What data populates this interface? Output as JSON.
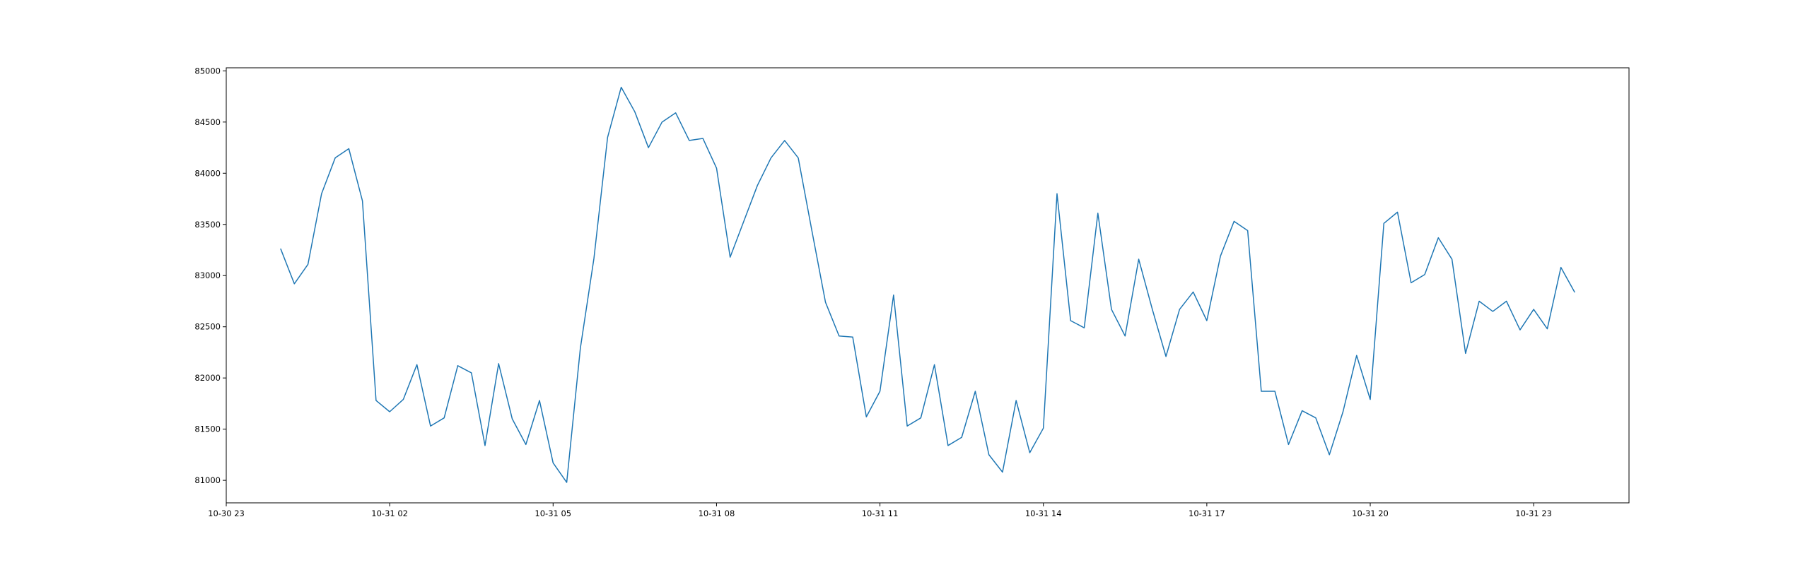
{
  "chart_data": {
    "type": "line",
    "title": "",
    "xlabel": "",
    "ylabel": "",
    "grid": false,
    "line_color": "#1f77b4",
    "xlim": [
      "10-30 23:00",
      "11-01 00:45"
    ],
    "ylim": [
      80780,
      85030
    ],
    "x_ticks": [
      "10-30 23",
      "10-31 02",
      "10-31 05",
      "10-31 08",
      "10-31 11",
      "10-31 14",
      "10-31 17",
      "10-31 20",
      "10-31 23"
    ],
    "y_ticks": [
      81000,
      81500,
      82000,
      82500,
      83000,
      83500,
      84000,
      84500,
      85000
    ],
    "series": [
      {
        "x": [
          "10-31 00:00",
          "10-31 00:15",
          "10-31 00:30",
          "10-31 00:45",
          "10-31 01:00",
          "10-31 01:15",
          "10-31 01:30",
          "10-31 01:45",
          "10-31 02:00",
          "10-31 02:15",
          "10-31 02:30",
          "10-31 02:45",
          "10-31 03:00",
          "10-31 03:15",
          "10-31 03:30",
          "10-31 03:45",
          "10-31 04:00",
          "10-31 04:15",
          "10-31 04:30",
          "10-31 04:45",
          "10-31 05:00",
          "10-31 05:15",
          "10-31 05:30",
          "10-31 05:45",
          "10-31 06:00",
          "10-31 06:15",
          "10-31 06:30",
          "10-31 06:45",
          "10-31 07:00",
          "10-31 07:15",
          "10-31 07:30",
          "10-31 07:45",
          "10-31 08:00",
          "10-31 08:15",
          "10-31 08:30",
          "10-31 08:45",
          "10-31 09:00",
          "10-31 09:15",
          "10-31 09:30",
          "10-31 09:45",
          "10-31 10:00",
          "10-31 10:15",
          "10-31 10:30",
          "10-31 10:45",
          "10-31 11:00",
          "10-31 11:15",
          "10-31 11:30",
          "10-31 11:45",
          "10-31 12:00",
          "10-31 12:15",
          "10-31 12:30",
          "10-31 12:45",
          "10-31 13:00",
          "10-31 13:15",
          "10-31 13:30",
          "10-31 13:45",
          "10-31 14:00",
          "10-31 14:15",
          "10-31 14:30",
          "10-31 14:45",
          "10-31 15:00",
          "10-31 15:15",
          "10-31 15:30",
          "10-31 15:45",
          "10-31 16:00",
          "10-31 16:15",
          "10-31 16:30",
          "10-31 16:45",
          "10-31 17:00",
          "10-31 17:15",
          "10-31 17:30",
          "10-31 17:45",
          "10-31 18:00",
          "10-31 18:15",
          "10-31 18:30",
          "10-31 18:45",
          "10-31 19:00",
          "10-31 19:15",
          "10-31 19:30",
          "10-31 19:45",
          "10-31 20:00",
          "10-31 20:15",
          "10-31 20:30",
          "10-31 20:45",
          "10-31 21:00",
          "10-31 21:15",
          "10-31 21:30",
          "10-31 21:45",
          "10-31 22:00",
          "10-31 22:15",
          "10-31 22:30",
          "10-31 22:45",
          "10-31 23:00",
          "10-31 23:15",
          "10-31 23:30",
          "10-31 23:45"
        ],
        "values": [
          83260,
          82920,
          83110,
          83800,
          84150,
          84240,
          83730,
          81780,
          81670,
          81790,
          82130,
          81530,
          81610,
          82120,
          82050,
          81340,
          82140,
          81600,
          81350,
          81780,
          81170,
          80980,
          82290,
          83170,
          84350,
          84840,
          84600,
          84250,
          84500,
          84590,
          84320,
          84340,
          84050,
          83180,
          83530,
          83880,
          84150,
          84320,
          84150,
          83440,
          82740,
          82410,
          82400,
          81620,
          81870,
          82810,
          81530,
          81610,
          82130,
          81340,
          81420,
          81870,
          81250,
          81080,
          81780,
          81270,
          81510,
          83800,
          82560,
          82490,
          83610,
          82670,
          82410,
          83160,
          82670,
          82210,
          82670,
          82840,
          82560,
          83190,
          83530,
          83440,
          81870,
          81870,
          81350,
          81680,
          81610,
          81250,
          81670,
          82220,
          81790,
          83510,
          83620,
          82930,
          83010,
          83370,
          83160,
          82240,
          82750,
          82650,
          82750,
          82470,
          82670,
          82480,
          83080,
          82840
        ]
      }
    ]
  }
}
